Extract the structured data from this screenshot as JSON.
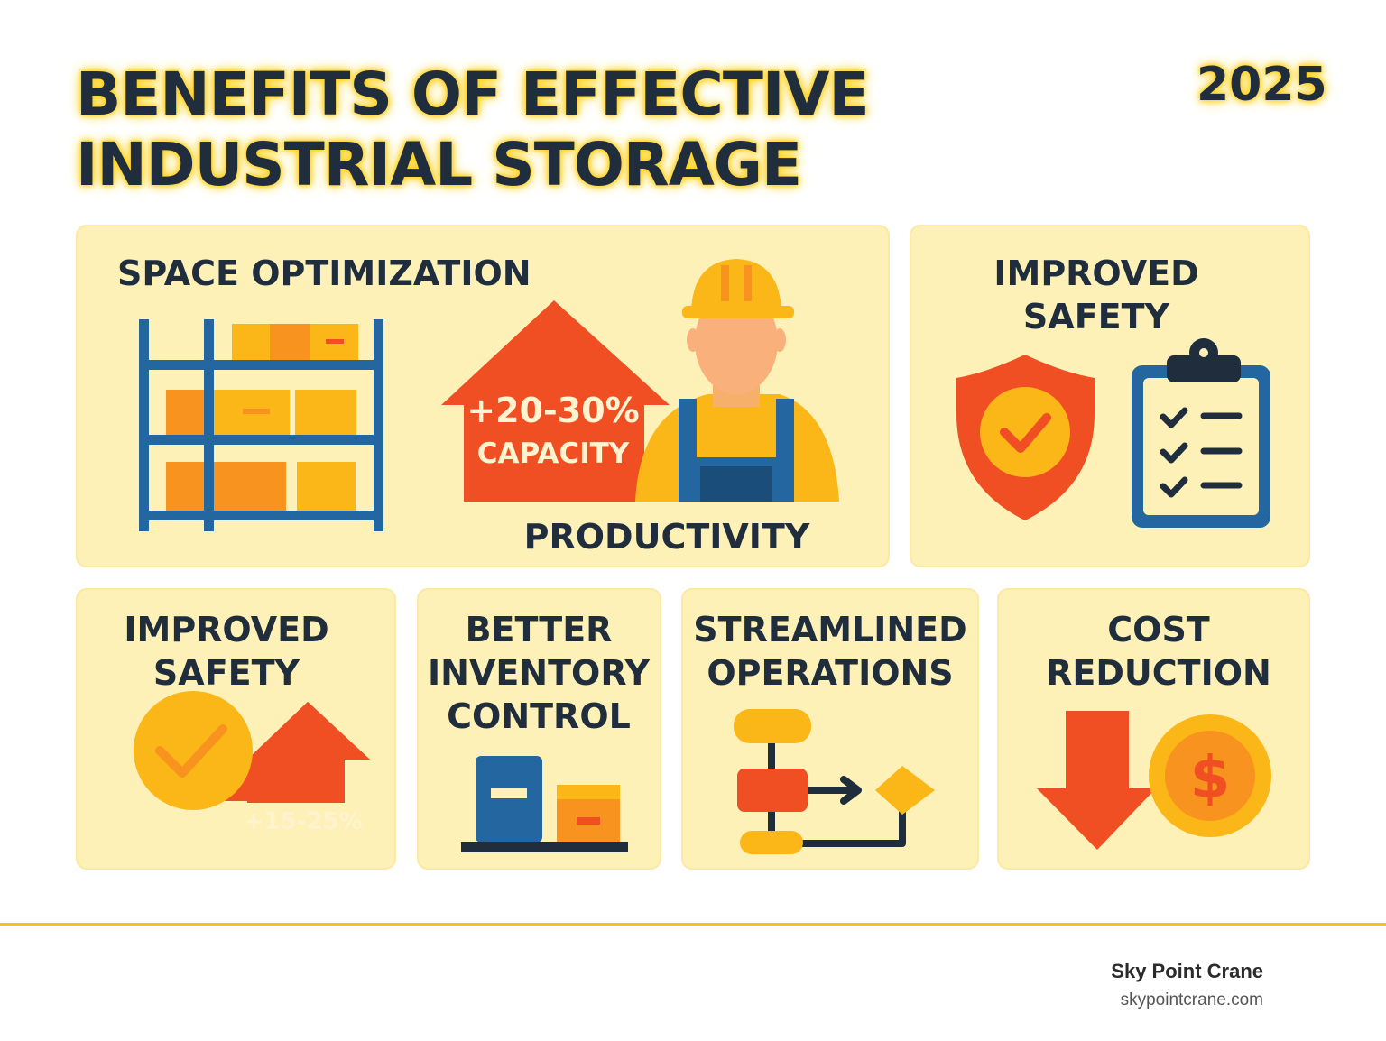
{
  "header": {
    "title": "BENEFITS OF EFFECTIVE INDUSTRIAL STORAGE",
    "year": "2025"
  },
  "cards": {
    "space": {
      "heading": "SPACE OPTIMIZATION",
      "badge_value": "+20-30%",
      "badge_label": "CAPACITY",
      "footer": "PRODUCTIVITY",
      "icons": [
        "shelving-icon",
        "house-arrow-icon",
        "worker-icon"
      ]
    },
    "safety_top": {
      "heading": "IMPROVED SAFETY",
      "icons": [
        "shield-check-icon",
        "clipboard-checklist-icon"
      ]
    },
    "safety_bottom": {
      "heading": "IMPROVED SAFETY",
      "badge_value": "+15-25%",
      "icons": [
        "check-circle-icon",
        "up-arrow-icon"
      ]
    },
    "inventory": {
      "heading": "BETTER INVENTORY CONTROL",
      "icons": [
        "inventory-bins-icon"
      ]
    },
    "operations": {
      "heading": "STREAMLINED OPERATIONS",
      "icons": [
        "flowchart-icon"
      ]
    },
    "cost": {
      "heading": "COST REDUCTION",
      "icons": [
        "down-arrow-icon",
        "dollar-coin-icon"
      ]
    }
  },
  "footer": {
    "brand": "Sky Point Crane",
    "url": "skypointcrane.com"
  },
  "colors": {
    "card_bg": "#fdf1b8",
    "navy": "#1f2d3d",
    "blue": "#2467a0",
    "red_orange": "#f04e23",
    "orange": "#f7931e",
    "yellow": "#fbb617",
    "highlight": "#ffd21f"
  }
}
